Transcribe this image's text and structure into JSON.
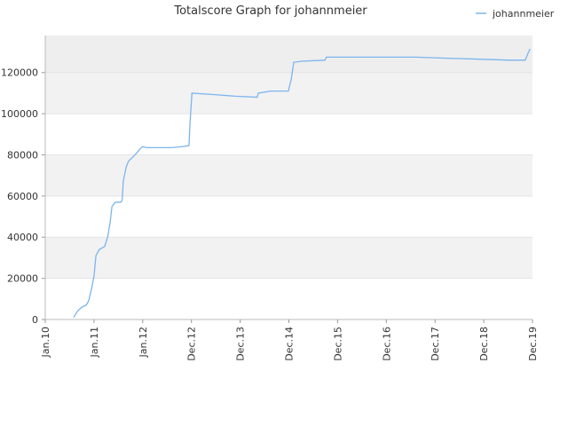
{
  "chart_data": {
    "type": "line",
    "title": "Totalscore Graph for johannmeier",
    "x": [
      0.58,
      0.67,
      0.75,
      0.84,
      0.89,
      0.95,
      1.0,
      1.04,
      1.11,
      1.22,
      1.28,
      1.33,
      1.37,
      1.44,
      1.55,
      1.58,
      1.6,
      1.66,
      1.71,
      1.8,
      1.88,
      1.95,
      2.0,
      2.08,
      2.59,
      2.81,
      2.95,
      2.97,
      3.01,
      3.35,
      3.9,
      4.35,
      4.37,
      4.63,
      4.99,
      5.05,
      5.1,
      5.26,
      5.74,
      5.77,
      7.6,
      8.18,
      8.91,
      9.54,
      9.85,
      9.91,
      9.95
    ],
    "series": [
      {
        "name": "johannmeier",
        "color": "#7cb5ec",
        "values": [
          1000,
          4300,
          6000,
          7000,
          9000,
          15000,
          21000,
          31000,
          34000,
          35500,
          40000,
          47000,
          55000,
          57000,
          57000,
          58000,
          67000,
          74000,
          77000,
          79000,
          81000,
          83000,
          84000,
          83500,
          83500,
          84000,
          84500,
          95000,
          110000,
          109500,
          108500,
          108000,
          110000,
          111000,
          111000,
          117000,
          125000,
          125500,
          126000,
          127500,
          127500,
          127000,
          126500,
          126000,
          126000,
          129500,
          131500
        ]
      }
    ],
    "xlim": [
      0,
      10
    ],
    "xticks": [
      {
        "value": 0,
        "label": "Jan.10"
      },
      {
        "value": 1,
        "label": "Jan.11"
      },
      {
        "value": 2,
        "label": "Jan.12"
      },
      {
        "value": 3,
        "label": "Dec.12"
      },
      {
        "value": 4,
        "label": "Dec.13"
      },
      {
        "value": 5,
        "label": "Dec.14"
      },
      {
        "value": 6,
        "label": "Dec.15"
      },
      {
        "value": 7,
        "label": "Dec.16"
      },
      {
        "value": 8,
        "label": "Dec.17"
      },
      {
        "value": 9,
        "label": "Dec.18"
      },
      {
        "value": 10,
        "label": "Dec.19"
      }
    ],
    "ylim": [
      0,
      138000
    ],
    "yticks": [
      0,
      20000,
      40000,
      60000,
      80000,
      100000,
      120000
    ],
    "grid": true,
    "legend": "top-right"
  }
}
